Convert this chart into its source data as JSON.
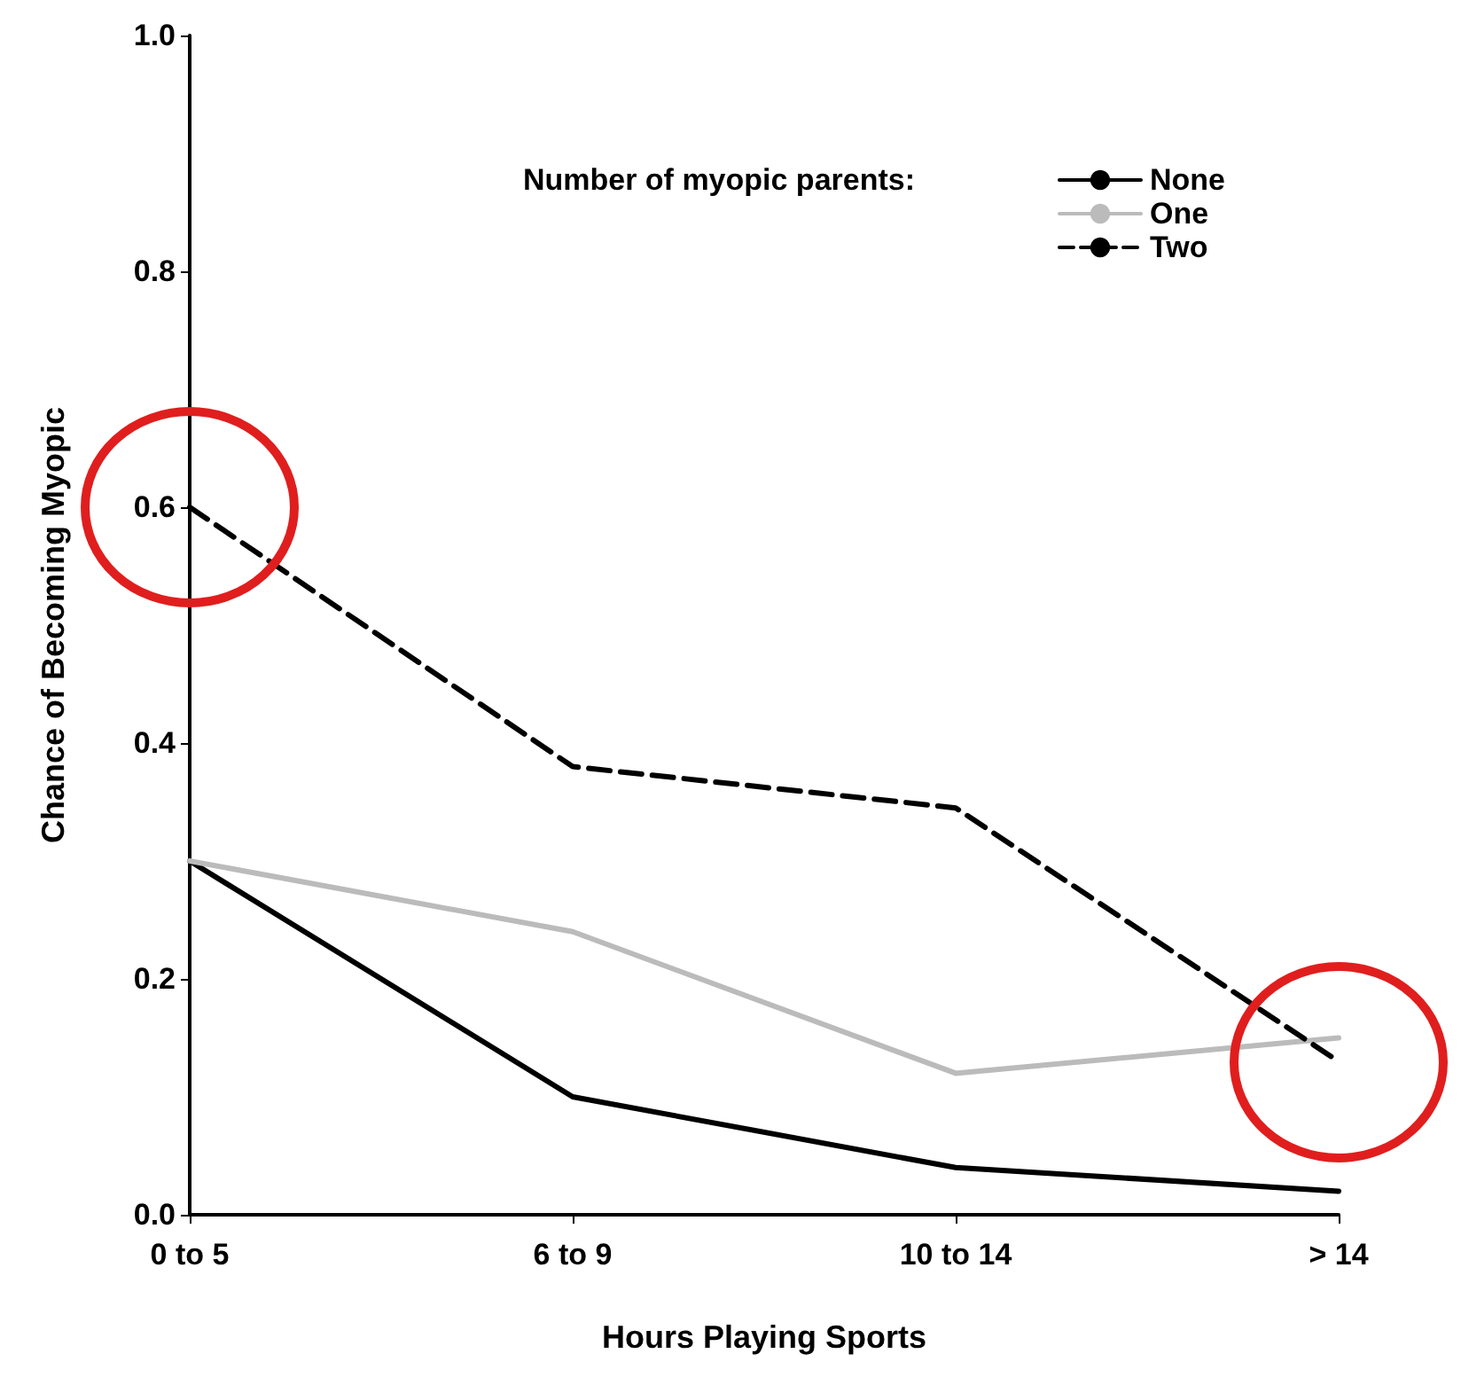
{
  "chart_data": {
    "type": "line",
    "xlabel": "Hours Playing Sports",
    "ylabel": "Chance of Becoming Myopic",
    "legend_title": "Number of myopic parents:",
    "categories": [
      "0 to 5",
      "6 to 9",
      "10 to 14",
      "> 14"
    ],
    "series": [
      {
        "name": "None",
        "color": "#000000",
        "values": [
          0.3,
          0.1,
          0.04,
          0.02
        ]
      },
      {
        "name": "One",
        "color": "#bbbbbb",
        "values": [
          0.3,
          0.24,
          0.12,
          0.15
        ]
      },
      {
        "name": "Two",
        "color": "#000000",
        "values": [
          0.6,
          0.38,
          0.345,
          0.13
        ],
        "line_style": "dashed"
      }
    ],
    "ylim": [
      0,
      1
    ],
    "yticks": [
      {
        "value": 0,
        "label": "0.0"
      },
      {
        "value": 0.2,
        "label": "0.2"
      },
      {
        "value": 0.4,
        "label": "0.4"
      },
      {
        "value": 0.6,
        "label": "0.6"
      },
      {
        "value": 0.8,
        "label": "0.8"
      },
      {
        "value": 1,
        "label": "1.0"
      }
    ],
    "grid": false,
    "legend": "top right",
    "marker": "none"
  }
}
